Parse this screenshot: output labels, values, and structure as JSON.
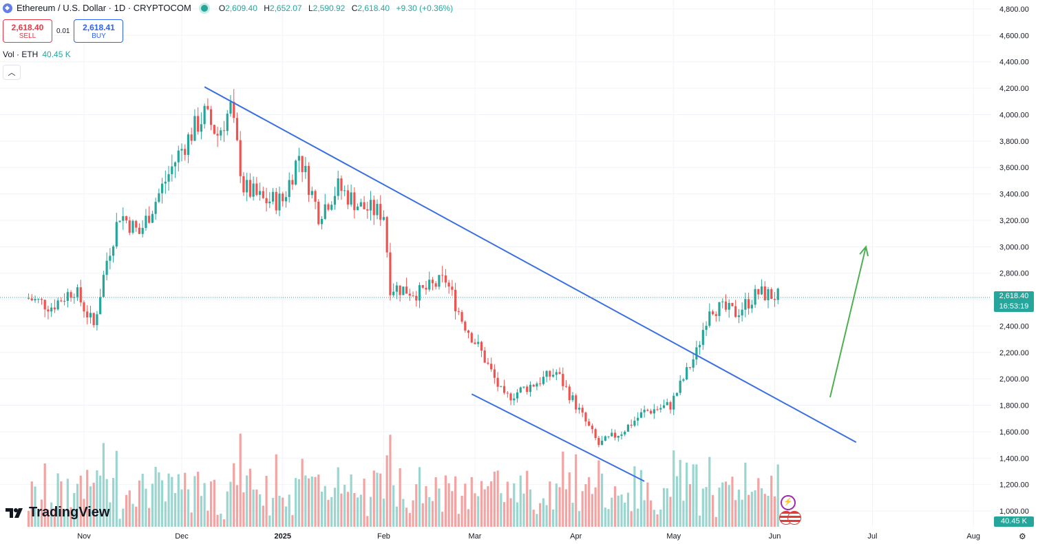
{
  "header": {
    "symbol_title": "Ethereum / U.S. Dollar · 1D · CRYPTOCOM",
    "ohlc": {
      "o_label": "O",
      "o": "2,609.40",
      "h_label": "H",
      "h": "2,652.07",
      "l_label": "L",
      "l": "2,590.92",
      "c_label": "C",
      "c": "2,618.40",
      "change": "+9.30 (+0.36%)"
    }
  },
  "trade": {
    "sell_price": "2,618.40",
    "sell_label": "SELL",
    "spread": "0.01",
    "buy_price": "2,618.41",
    "buy_label": "BUY"
  },
  "volume_legend": {
    "label": "Vol · ETH",
    "value": "40.45 K"
  },
  "collapse_icon": "chevron-up-icon",
  "branding": {
    "logo_text": "TradingView"
  },
  "price_label": {
    "price": "2,618.40",
    "countdown": "16:53:19"
  },
  "volume_label": "40.45 K",
  "colors": {
    "up": "#26a69a",
    "down": "#ef5350",
    "trendline": "#3a6fe2",
    "arrow": "#4caf50",
    "grid": "#f0f3fa"
  },
  "chart_data": {
    "type": "candlestick",
    "title": "Ethereum / U.S. Dollar · 1D · CRYPTOCOM",
    "y_axis_ticks": [
      "4,800.00",
      "4,600.00",
      "4,400.00",
      "4,200.00",
      "4,000.00",
      "3,800.00",
      "3,600.00",
      "3,400.00",
      "3,200.00",
      "3,000.00",
      "2,800.00",
      "2,600.00",
      "2,400.00",
      "2,200.00",
      "2,000.00",
      "1,800.00",
      "1,600.00",
      "1,400.00",
      "1,200.00",
      "1,000.00"
    ],
    "x_axis_ticks": [
      "Nov",
      "Dec",
      "2025",
      "Feb",
      "Mar",
      "Apr",
      "May",
      "Jun",
      "Jul",
      "Aug"
    ],
    "ylim": [
      950,
      4850
    ],
    "last_price": 2618.4,
    "price_series": [
      {
        "date": "2024-10-15",
        "close": 2610
      },
      {
        "date": "2024-10-22",
        "close": 2550
      },
      {
        "date": "2024-10-29",
        "close": 2680
      },
      {
        "date": "2024-11-04",
        "close": 2400
      },
      {
        "date": "2024-11-08",
        "close": 2900
      },
      {
        "date": "2024-11-12",
        "close": 3250
      },
      {
        "date": "2024-11-18",
        "close": 3100
      },
      {
        "date": "2024-11-24",
        "close": 3400
      },
      {
        "date": "2024-11-30",
        "close": 3700
      },
      {
        "date": "2024-12-05",
        "close": 3900
      },
      {
        "date": "2024-12-08",
        "close": 4000
      },
      {
        "date": "2024-12-12",
        "close": 3850
      },
      {
        "date": "2024-12-16",
        "close": 4050
      },
      {
        "date": "2024-12-20",
        "close": 3450
      },
      {
        "date": "2024-12-26",
        "close": 3350
      },
      {
        "date": "2025-01-01",
        "close": 3350
      },
      {
        "date": "2025-01-06",
        "close": 3700
      },
      {
        "date": "2025-01-12",
        "close": 3250
      },
      {
        "date": "2025-01-18",
        "close": 3450
      },
      {
        "date": "2025-01-25",
        "close": 3300
      },
      {
        "date": "2025-02-01",
        "close": 3250
      },
      {
        "date": "2025-02-03",
        "close": 2700
      },
      {
        "date": "2025-02-12",
        "close": 2650
      },
      {
        "date": "2025-02-20",
        "close": 2750
      },
      {
        "date": "2025-02-25",
        "close": 2450
      },
      {
        "date": "2025-03-03",
        "close": 2200
      },
      {
        "date": "2025-03-10",
        "close": 1850
      },
      {
        "date": "2025-03-18",
        "close": 1950
      },
      {
        "date": "2025-03-26",
        "close": 2050
      },
      {
        "date": "2025-04-01",
        "close": 1800
      },
      {
        "date": "2025-04-08",
        "close": 1500
      },
      {
        "date": "2025-04-15",
        "close": 1600
      },
      {
        "date": "2025-04-22",
        "close": 1750
      },
      {
        "date": "2025-04-30",
        "close": 1800
      },
      {
        "date": "2025-05-08",
        "close": 2200
      },
      {
        "date": "2025-05-12",
        "close": 2550
      },
      {
        "date": "2025-05-20",
        "close": 2500
      },
      {
        "date": "2025-05-27",
        "close": 2650
      },
      {
        "date": "2025-06-03",
        "close": 2618
      }
    ],
    "volume_last": "40.45 K",
    "annotations": [
      {
        "type": "descending-trendline",
        "from": {
          "date": "2024-12-08",
          "price": 4210
        },
        "to": {
          "date": "2025-06-26",
          "price": 1520
        }
      },
      {
        "type": "channel-support-line",
        "from": {
          "date": "2025-02-28",
          "price": 1885
        },
        "to": {
          "date": "2025-04-22",
          "price": 1225
        }
      },
      {
        "type": "bullish-arrow",
        "from": {
          "date": "2025-06-18",
          "price": 1860
        },
        "to": {
          "date": "2025-06-29",
          "price": 3000
        }
      }
    ]
  }
}
